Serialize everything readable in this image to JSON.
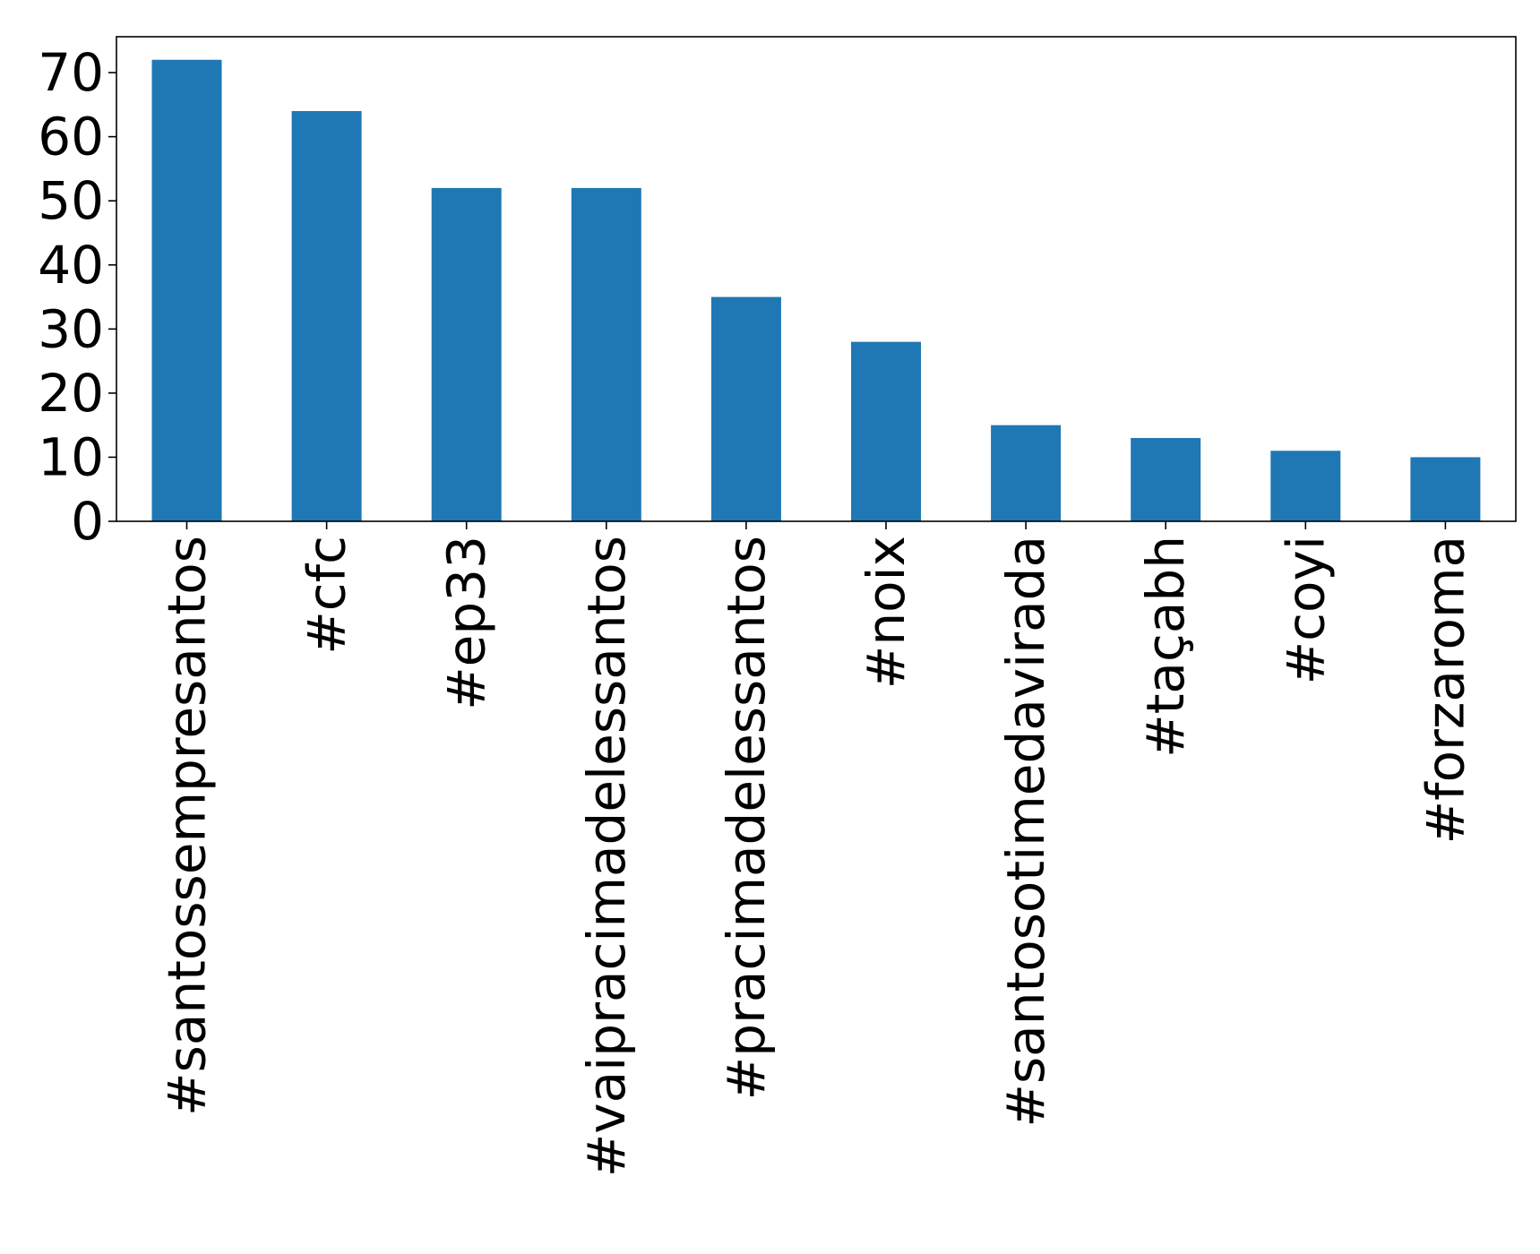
{
  "chart_data": {
    "type": "bar",
    "categories": [
      "#santossempresantos",
      "#cfc",
      "#ep33",
      "#vaipracimadelessantos",
      "#pracimadelessantos",
      "#noix",
      "#santosotimedavirada",
      "#taçabh",
      "#coyi",
      "#forzaroma"
    ],
    "values": [
      72,
      64,
      52,
      52,
      35,
      28,
      15,
      13,
      11,
      10
    ],
    "ylim": [
      0,
      75.6
    ],
    "yticks": [
      0,
      10,
      20,
      30,
      40,
      50,
      60,
      70
    ],
    "title": "",
    "xlabel": "",
    "ylabel": "",
    "bar_color": "#1f77b4",
    "grid": false,
    "legend": "none"
  }
}
